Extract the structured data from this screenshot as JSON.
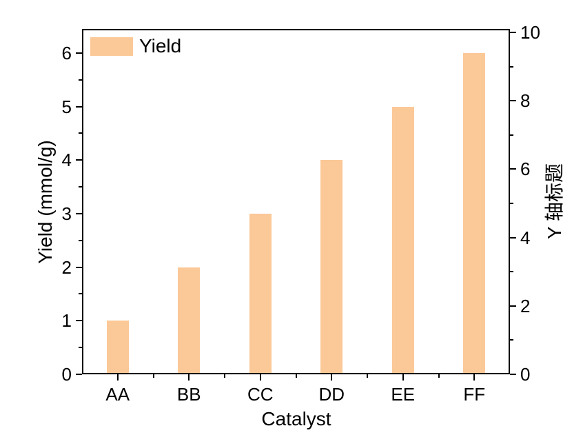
{
  "chart_data": {
    "type": "bar",
    "title": "",
    "categories": [
      "AA",
      "BB",
      "CC",
      "DD",
      "EE",
      "FF"
    ],
    "series": [
      {
        "name": "Yield",
        "values": [
          1,
          2,
          3,
          4,
          5,
          6
        ]
      }
    ],
    "xlabel": "Catalyst",
    "ylabel_left": "Yield (mmol/g)",
    "ylabel_right": "Y 轴标题",
    "left_axis": {
      "min": 0,
      "max": 6.45,
      "major_ticks": [
        0,
        1,
        2,
        3,
        4,
        5,
        6
      ],
      "minor_ticks": [
        0.5,
        1.5,
        2.5,
        3.5,
        4.5,
        5.5
      ]
    },
    "right_axis": {
      "min": 0,
      "max": 10.1,
      "major_ticks": [
        0,
        2,
        4,
        6,
        8,
        10
      ],
      "minor_ticks": [
        1,
        3,
        5,
        7,
        9
      ]
    },
    "legend": {
      "label": "Yield",
      "position": "top-left"
    },
    "grid": false,
    "colors": {
      "bar_fill": "#FBC897",
      "axis": "#000000",
      "text": "#000000",
      "background": "#FFFFFF"
    }
  }
}
